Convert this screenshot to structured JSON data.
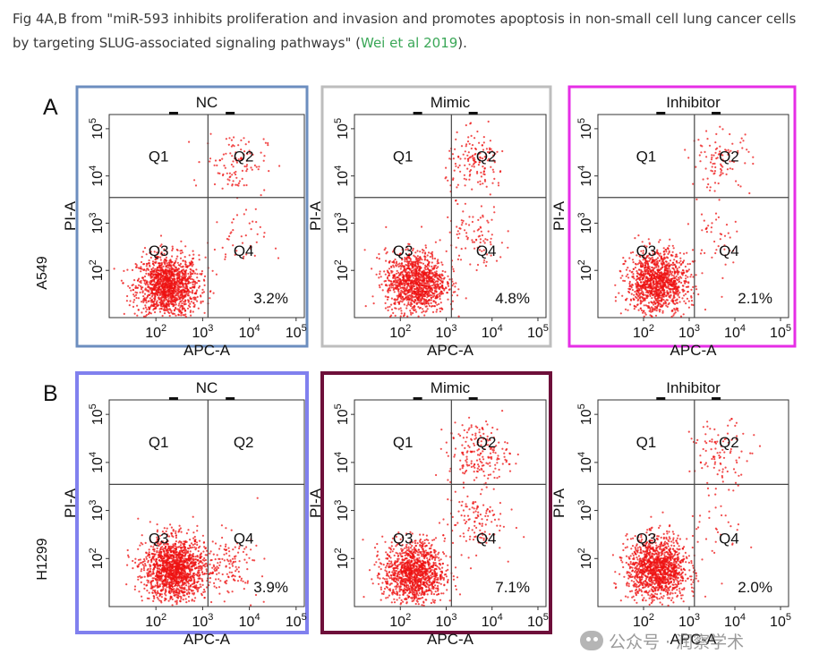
{
  "caption": {
    "prefix": "Fig 4A,B from \"miR-593 inhibits proliferation and invasion and promotes apoptosis in non-small cell lung cancer cells by targeting SLUG-associated signaling pathways\" (",
    "link_text": "Wei et al 2019",
    "suffix": ")."
  },
  "watermark": {
    "text": "公众号 · 润察学术"
  },
  "colors": {
    "dots": "#ee1111",
    "border_A_NC": "#6c8ebf",
    "border_A_Mimic": "#bdbdbd",
    "border_A_Inhibitor": "#e62ee6",
    "border_B_NC": "#8080ee",
    "border_B_Mimic": "#6e0f3a"
  },
  "chart_data": [
    {
      "type": "scatter",
      "panel": "A",
      "row_label": "A549",
      "title": "NC",
      "xlabel": "APC-A",
      "ylabel": "PI-A",
      "x_ticks": [
        "10^2",
        "10^3",
        "10^4",
        "10^5"
      ],
      "y_ticks": [
        "10^2",
        "10^3",
        "10^4",
        "10^5"
      ],
      "xscale": "log",
      "yscale": "log",
      "xlim": [
        10,
        150000
      ],
      "ylim": [
        10,
        200000
      ],
      "x_gate": 1300,
      "y_gate": 3500,
      "quadrants": [
        "Q1",
        "Q2",
        "Q3",
        "Q4"
      ],
      "percent": "3.2%",
      "clusters": [
        {
          "center": [
            180,
            45
          ],
          "count": 1400
        },
        {
          "center": [
            5000,
            20000
          ],
          "count": 110
        },
        {
          "center": [
            5000,
            400
          ],
          "count": 45
        }
      ],
      "border": "border_A_NC"
    },
    {
      "type": "scatter",
      "panel": "A",
      "title": "Mimic",
      "xlabel": "APC-A",
      "ylabel": "PI-A",
      "x_ticks": [
        "10^2",
        "10^3",
        "10^4",
        "10^5"
      ],
      "y_ticks": [
        "10^2",
        "10^3",
        "10^4",
        "10^5"
      ],
      "xscale": "log",
      "yscale": "log",
      "xlim": [
        10,
        150000
      ],
      "ylim": [
        10,
        200000
      ],
      "x_gate": 1300,
      "y_gate": 3500,
      "quadrants": [
        "Q1",
        "Q2",
        "Q3",
        "Q4"
      ],
      "percent": "4.8%",
      "clusters": [
        {
          "center": [
            220,
            55
          ],
          "count": 1200
        },
        {
          "center": [
            4500,
            18000
          ],
          "count": 150
        },
        {
          "center": [
            4000,
            500
          ],
          "count": 90
        }
      ],
      "border": "border_A_Mimic"
    },
    {
      "type": "scatter",
      "panel": "A",
      "title": "Inhibitor",
      "xlabel": "APC-A",
      "ylabel": "PI-A",
      "x_ticks": [
        "10^2",
        "10^3",
        "10^4",
        "10^5"
      ],
      "y_ticks": [
        "10^2",
        "10^3",
        "10^4",
        "10^5"
      ],
      "xscale": "log",
      "yscale": "log",
      "xlim": [
        10,
        150000
      ],
      "ylim": [
        10,
        200000
      ],
      "x_gate": 1300,
      "y_gate": 3500,
      "quadrants": [
        "Q1",
        "Q2",
        "Q3",
        "Q4"
      ],
      "percent": "2.1%",
      "clusters": [
        {
          "center": [
            200,
            55
          ],
          "count": 1200
        },
        {
          "center": [
            5000,
            20000
          ],
          "count": 100
        },
        {
          "center": [
            4000,
            500
          ],
          "count": 40
        }
      ],
      "border": "border_A_Inhibitor"
    },
    {
      "type": "scatter",
      "panel": "B",
      "row_label": "H1299",
      "title": "NC",
      "xlabel": "APC-A",
      "ylabel": "PI-A",
      "x_ticks": [
        "10^2",
        "10^3",
        "10^4",
        "10^5"
      ],
      "y_ticks": [
        "10^2",
        "10^3",
        "10^4",
        "10^5"
      ],
      "xscale": "log",
      "yscale": "log",
      "xlim": [
        10,
        150000
      ],
      "ylim": [
        10,
        200000
      ],
      "x_gate": 1300,
      "y_gate": 3500,
      "quadrants": [
        "Q1",
        "Q2",
        "Q3",
        "Q4"
      ],
      "percent": "3.9%",
      "clusters": [
        {
          "center": [
            250,
            60
          ],
          "count": 1500
        },
        {
          "center": [
            3500,
            70
          ],
          "count": 140
        }
      ],
      "border": "border_B_NC"
    },
    {
      "type": "scatter",
      "panel": "B",
      "title": "Mimic",
      "xlabel": "APC-A",
      "ylabel": "PI-A",
      "x_ticks": [
        "10^2",
        "10^3",
        "10^4",
        "10^5"
      ],
      "y_ticks": [
        "10^2",
        "10^3",
        "10^4",
        "10^5"
      ],
      "xscale": "log",
      "yscale": "log",
      "xlim": [
        10,
        150000
      ],
      "ylim": [
        10,
        200000
      ],
      "x_gate": 1300,
      "y_gate": 3500,
      "quadrants": [
        "Q1",
        "Q2",
        "Q3",
        "Q4"
      ],
      "percent": "7.1%",
      "clusters": [
        {
          "center": [
            200,
            50
          ],
          "count": 1200
        },
        {
          "center": [
            5000,
            15000
          ],
          "count": 200
        },
        {
          "center": [
            4000,
            600
          ],
          "count": 120
        }
      ],
      "border": "border_B_Mimic"
    },
    {
      "type": "scatter",
      "panel": "B",
      "title": "Inhibitor",
      "xlabel": "APC-A",
      "ylabel": "PI-A",
      "x_ticks": [
        "10^2",
        "10^3",
        "10^4",
        "10^5"
      ],
      "y_ticks": [
        "10^2",
        "10^3",
        "10^4",
        "10^5"
      ],
      "xscale": "log",
      "yscale": "log",
      "xlim": [
        10,
        150000
      ],
      "ylim": [
        10,
        200000
      ],
      "x_gate": 1300,
      "y_gate": 3500,
      "quadrants": [
        "Q1",
        "Q2",
        "Q3",
        "Q4"
      ],
      "percent": "2.0%",
      "clusters": [
        {
          "center": [
            200,
            60
          ],
          "count": 1300
        },
        {
          "center": [
            5000,
            15000
          ],
          "count": 100
        },
        {
          "center": [
            4000,
            500
          ],
          "count": 30
        }
      ],
      "border": null
    }
  ]
}
